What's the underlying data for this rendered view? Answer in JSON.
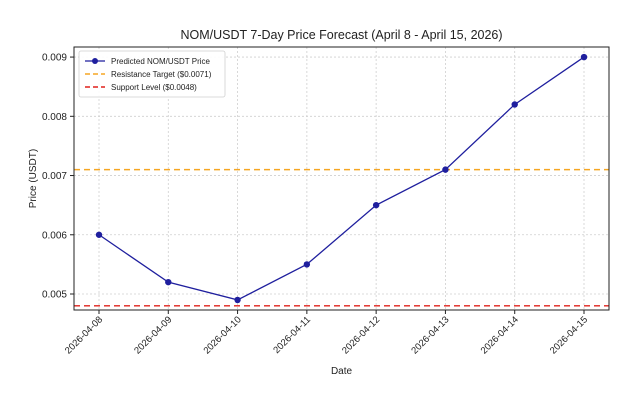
{
  "chart_data": {
    "type": "line",
    "title": "NOM/USDT 7-Day Price Forecast (April 8 - April 15, 2026)",
    "xlabel": "Date",
    "ylabel": "Price (USDT)",
    "x": [
      "2026-04-08",
      "2026-04-09",
      "2026-04-10",
      "2026-04-11",
      "2026-04-12",
      "2026-04-13",
      "2026-04-14",
      "2026-04-15"
    ],
    "series": [
      {
        "name": "Predicted NOM/USDT Price",
        "values": [
          0.006,
          0.0052,
          0.0049,
          0.0055,
          0.0065,
          0.0071,
          0.0082,
          0.009
        ],
        "color": "#1f1f9e",
        "marker": "circle"
      }
    ],
    "hlines": [
      {
        "name": "Resistance Target ($0.0071)",
        "value": 0.0071,
        "color": "#f5a623",
        "style": "dashed"
      },
      {
        "name": "Support Level ($0.0048)",
        "value": 0.0048,
        "color": "#e0201b",
        "style": "dashed"
      }
    ],
    "yticks": [
      "0.005",
      "0.006",
      "0.007",
      "0.008",
      "0.009"
    ],
    "ylim": [
      0.00473,
      0.00917
    ],
    "grid": true,
    "legend_position": "top-left"
  }
}
